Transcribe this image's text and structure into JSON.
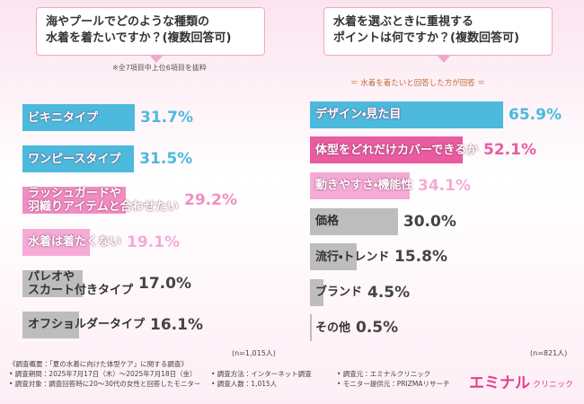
{
  "chart_data": [
    {
      "type": "bar",
      "orientation": "horizontal",
      "title": "海やプールでどのような種類の\n水着を着たいですか？(複数回答可)",
      "note": "※全7項目中上位6項目を抜粋",
      "n_label": "(n=1,015人)",
      "categories": [
        "ビキニタイプ",
        "ワンピースタイプ",
        "ラッシュガードや\n羽織りアイテムと合わせたい",
        "水着は着たくない",
        "パレオや\nスカート付きタイプ",
        "オフショルダータイプ"
      ],
      "values": [
        31.7,
        31.5,
        29.2,
        19.1,
        17.0,
        16.1
      ],
      "value_labels": [
        "31.7%",
        "31.5%",
        "29.2%",
        "19.1%",
        "17.0%",
        "16.1%"
      ],
      "colors": [
        "#4cb9dd",
        "#4cb9dd",
        "#f28dc3",
        "#f6aad6",
        "#bdbdbd",
        "#bdbdbd"
      ]
    },
    {
      "type": "bar",
      "orientation": "horizontal",
      "title": "水着を選ぶときに重視する\nポイントは何ですか？(複数回答可)",
      "subtitle": "＝ 水着を着たいと回答した方が回答 ＝",
      "n_label": "(n=821人)",
      "categories": [
        "デザイン・見た目",
        "体型をどれだけカバーできるか",
        "動きやすさ・機能性",
        "価格",
        "流行・トレンド",
        "ブランド",
        "その他"
      ],
      "values": [
        65.9,
        52.1,
        34.1,
        30.0,
        15.8,
        4.5,
        0.5
      ],
      "value_labels": [
        "65.9%",
        "52.1%",
        "34.1%",
        "30.0%",
        "15.8%",
        "4.5%",
        "0.5%"
      ],
      "colors": [
        "#4cb9dd",
        "#e95c9f",
        "#f6aad6",
        "#bdbdbd",
        "#bdbdbd",
        "#bdbdbd",
        "#bdbdbd"
      ]
    }
  ],
  "footer": {
    "heading": "《調査概要：「夏の水着に向けた体型ケア」に関する調査》",
    "items": [
      "• 調査期間：2025年7月17日（木）～2025年7月18日（金）",
      "• 調査方法：インターネット調査",
      "• 調査元：エミナルクリニック",
      "• 調査対象：調査回答時に20～30代の女性と回答したモニター",
      "• 調査人数：1,015人",
      "• モニター提供元：PRIZMAリサーチ"
    ],
    "logo_main": "エミナル",
    "logo_sub": "クリニック"
  }
}
